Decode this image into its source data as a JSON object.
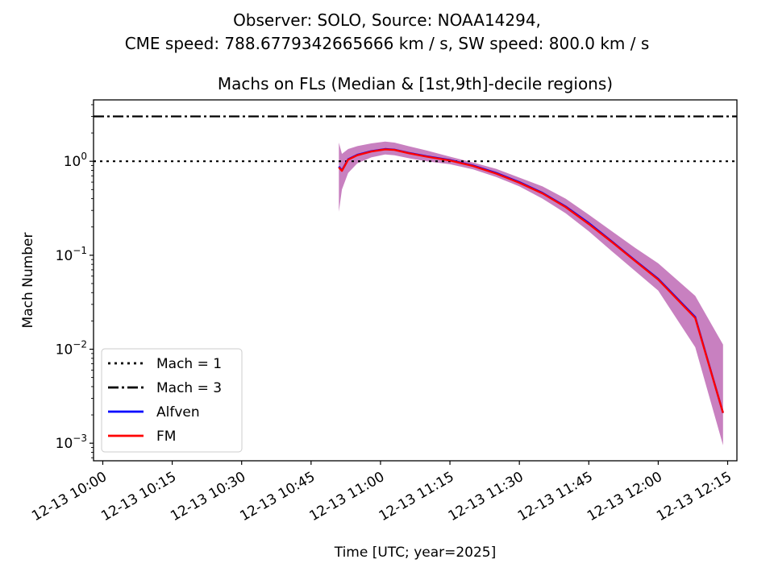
{
  "figure": {
    "suptitle_line1": "Observer: SOLO, Source: NOAA14294,",
    "suptitle_line2": "CME speed: 788.6779342665666 km / s, SW speed: 800.0 km / s"
  },
  "chart_data": {
    "type": "line",
    "title": "Machs on FLs (Median & [1st,9th]-decile regions)",
    "xlabel": "Time [UTC; year=2025]",
    "ylabel": "Mach Number",
    "yscale": "log",
    "ylim": [
      0.00065,
      4.5
    ],
    "xlim": [
      "2025-12-13 09:58",
      "2025-12-13 12:17"
    ],
    "xticks": [
      {
        "t": "2025-12-13 10:00",
        "label": "12-13 10:00"
      },
      {
        "t": "2025-12-13 10:15",
        "label": "12-13 10:15"
      },
      {
        "t": "2025-12-13 10:30",
        "label": "12-13 10:30"
      },
      {
        "t": "2025-12-13 10:45",
        "label": "12-13 10:45"
      },
      {
        "t": "2025-12-13 11:00",
        "label": "12-13 11:00"
      },
      {
        "t": "2025-12-13 11:15",
        "label": "12-13 11:15"
      },
      {
        "t": "2025-12-13 11:30",
        "label": "12-13 11:30"
      },
      {
        "t": "2025-12-13 11:45",
        "label": "12-13 11:45"
      },
      {
        "t": "2025-12-13 12:00",
        "label": "12-13 12:00"
      },
      {
        "t": "2025-12-13 12:15",
        "label": "12-13 12:15"
      }
    ],
    "yticks": [
      {
        "v": 0.001,
        "mant": "10",
        "exp": "−3"
      },
      {
        "v": 0.01,
        "mant": "10",
        "exp": "−2"
      },
      {
        "v": 0.1,
        "mant": "10",
        "exp": "−1"
      },
      {
        "v": 1,
        "mant": "10",
        "exp": "0"
      }
    ],
    "hlines": [
      {
        "name": "Mach = 1",
        "y": 1,
        "color": "#000000",
        "style": "dotted"
      },
      {
        "name": "Mach = 3",
        "y": 3,
        "color": "#000000",
        "style": "dashdot"
      }
    ],
    "series": [
      {
        "name": "Alfven",
        "color": "#0000ff",
        "x": [
          "2025-12-13 10:51:00",
          "2025-12-13 10:51:40",
          "2025-12-13 10:53:00",
          "2025-12-13 10:55:00",
          "2025-12-13 10:58:00",
          "2025-12-13 11:01:00",
          "2025-12-13 11:03:00",
          "2025-12-13 11:06:00",
          "2025-12-13 11:10:00",
          "2025-12-13 11:15:00",
          "2025-12-13 11:20:00",
          "2025-12-13 11:25:00",
          "2025-12-13 11:30:00",
          "2025-12-13 11:35:00",
          "2025-12-13 11:40:00",
          "2025-12-13 11:45:00",
          "2025-12-13 11:50:00",
          "2025-12-13 11:55:00",
          "2025-12-13 12:00:00",
          "2025-12-13 12:08:00",
          "2025-12-13 12:14:00"
        ],
        "y": [
          0.88,
          0.8,
          1.05,
          1.17,
          1.28,
          1.35,
          1.33,
          1.23,
          1.13,
          1.03,
          0.9,
          0.75,
          0.6,
          0.46,
          0.33,
          0.22,
          0.14,
          0.088,
          0.056,
          0.022,
          0.0021
        ]
      },
      {
        "name": "FM",
        "color": "#ff0000",
        "x": [
          "2025-12-13 10:51:00",
          "2025-12-13 10:51:40",
          "2025-12-13 10:53:00",
          "2025-12-13 10:55:00",
          "2025-12-13 10:58:00",
          "2025-12-13 11:01:00",
          "2025-12-13 11:03:00",
          "2025-12-13 11:06:00",
          "2025-12-13 11:10:00",
          "2025-12-13 11:15:00",
          "2025-12-13 11:20:00",
          "2025-12-13 11:25:00",
          "2025-12-13 11:30:00",
          "2025-12-13 11:35:00",
          "2025-12-13 11:40:00",
          "2025-12-13 11:45:00",
          "2025-12-13 11:50:00",
          "2025-12-13 11:55:00",
          "2025-12-13 12:00:00",
          "2025-12-13 12:08:00",
          "2025-12-13 12:14:00"
        ],
        "y": [
          0.86,
          0.79,
          1.04,
          1.16,
          1.27,
          1.34,
          1.32,
          1.22,
          1.12,
          1.02,
          0.89,
          0.74,
          0.59,
          0.455,
          0.325,
          0.215,
          0.138,
          0.087,
          0.055,
          0.0215,
          0.0021
        ]
      }
    ],
    "band": {
      "color": "#c880c0",
      "x": [
        "2025-12-13 10:51:00",
        "2025-12-13 10:51:40",
        "2025-12-13 10:53:00",
        "2025-12-13 10:55:00",
        "2025-12-13 10:58:00",
        "2025-12-13 11:01:00",
        "2025-12-13 11:03:00",
        "2025-12-13 11:06:00",
        "2025-12-13 11:10:00",
        "2025-12-13 11:15:00",
        "2025-12-13 11:20:00",
        "2025-12-13 11:25:00",
        "2025-12-13 11:30:00",
        "2025-12-13 11:35:00",
        "2025-12-13 11:40:00",
        "2025-12-13 11:45:00",
        "2025-12-13 11:50:00",
        "2025-12-13 11:55:00",
        "2025-12-13 12:00:00",
        "2025-12-13 12:08:00",
        "2025-12-13 12:14:00"
      ],
      "lower": [
        0.29,
        0.5,
        0.75,
        0.95,
        1.1,
        1.18,
        1.16,
        1.08,
        1.0,
        0.93,
        0.82,
        0.68,
        0.54,
        0.4,
        0.28,
        0.18,
        0.11,
        0.068,
        0.042,
        0.0105,
        0.00095
      ],
      "upper": [
        1.58,
        1.2,
        1.35,
        1.45,
        1.55,
        1.62,
        1.58,
        1.45,
        1.3,
        1.12,
        0.97,
        0.83,
        0.67,
        0.54,
        0.4,
        0.27,
        0.18,
        0.12,
        0.082,
        0.037,
        0.0112
      ]
    },
    "legend": {
      "position": "lower-left",
      "entries": [
        {
          "label": "Mach = 1",
          "style": "dotted",
          "color": "#000000"
        },
        {
          "label": "Mach = 3",
          "style": "dashdot",
          "color": "#000000"
        },
        {
          "label": "Alfven",
          "style": "solid",
          "color": "#0000ff"
        },
        {
          "label": "FM",
          "style": "solid",
          "color": "#ff0000"
        }
      ]
    }
  }
}
